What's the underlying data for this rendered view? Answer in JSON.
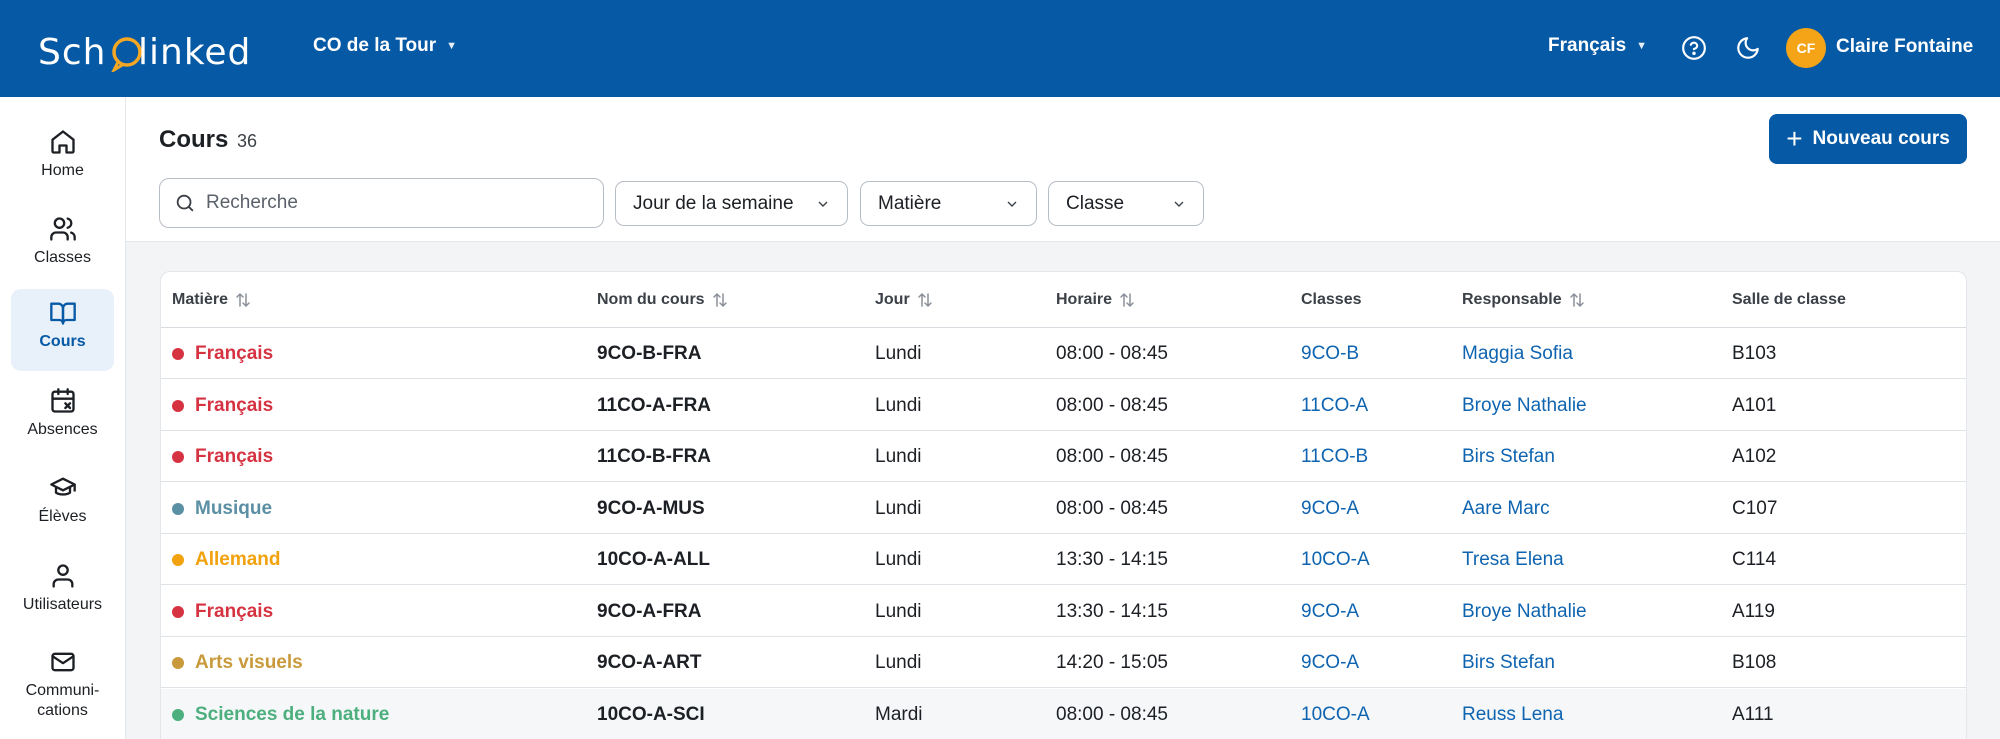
{
  "topbar": {
    "logo_text": "SchoQlinked",
    "school": "CO de la Tour",
    "language": "Français",
    "user_initials": "CF",
    "user_name": "Claire Fontaine"
  },
  "sidebar": {
    "items": [
      {
        "label": "Home",
        "icon": "home-icon"
      },
      {
        "label": "Classes",
        "icon": "users-icon"
      },
      {
        "label": "Cours",
        "icon": "book-icon"
      },
      {
        "label": "Absences",
        "icon": "calendar-x-icon"
      },
      {
        "label": "Élèves",
        "icon": "graduation-cap-icon"
      },
      {
        "label": "Utilisateurs",
        "icon": "user-icon"
      },
      {
        "label": "Communi-",
        "label2": "cations",
        "icon": "mail-icon"
      }
    ]
  },
  "page": {
    "title": "Cours",
    "count": "36",
    "new_button": "Nouveau cours",
    "search_placeholder": "Recherche",
    "filters": {
      "day": "Jour de la semaine",
      "subject": "Matière",
      "class": "Classe"
    }
  },
  "table": {
    "headers": {
      "subject": "Matière",
      "course": "Nom du cours",
      "day": "Jour",
      "time": "Horaire",
      "classes": "Classes",
      "resp": "Responsable",
      "room": "Salle de classe"
    },
    "rows": [
      {
        "subject": "Français",
        "color": "#d63342",
        "course": "9CO-B-FRA",
        "day": "Lundi",
        "time": "08:00 - 08:45",
        "classes": "9CO-B",
        "resp": "Maggia Sofia",
        "room": "B103"
      },
      {
        "subject": "Français",
        "color": "#d63342",
        "course": "11CO-A-FRA",
        "day": "Lundi",
        "time": "08:00 - 08:45",
        "classes": "11CO-A",
        "resp": "Broye Nathalie",
        "room": "A101"
      },
      {
        "subject": "Français",
        "color": "#d63342",
        "course": "11CO-B-FRA",
        "day": "Lundi",
        "time": "08:00 - 08:45",
        "classes": "11CO-B",
        "resp": "Birs Stefan",
        "room": "A102"
      },
      {
        "subject": "Musique",
        "color": "#5b8fa3",
        "course": "9CO-A-MUS",
        "day": "Lundi",
        "time": "08:00 - 08:45",
        "classes": "9CO-A",
        "resp": "Aare Marc",
        "room": "C107"
      },
      {
        "subject": "Allemand",
        "color": "#f2a20c",
        "course": "10CO-A-ALL",
        "day": "Lundi",
        "time": "13:30 - 14:15",
        "classes": "10CO-A",
        "resp": "Tresa Elena",
        "room": "C114"
      },
      {
        "subject": "Français",
        "color": "#d63342",
        "course": "9CO-A-FRA",
        "day": "Lundi",
        "time": "13:30 - 14:15",
        "classes": "9CO-A",
        "resp": "Broye Nathalie",
        "room": "A119"
      },
      {
        "subject": "Arts visuels",
        "color": "#c99a3b",
        "course": "9CO-A-ART",
        "day": "Lundi",
        "time": "14:20 - 15:05",
        "classes": "9CO-A",
        "resp": "Birs Stefan",
        "room": "B108"
      },
      {
        "subject": "Sciences de la nature",
        "color": "#4caf7d",
        "course": "10CO-A-SCI",
        "day": "Mardi",
        "time": "08:00 - 08:45",
        "classes": "10CO-A",
        "resp": "Reuss Lena",
        "room": "A111"
      }
    ]
  }
}
